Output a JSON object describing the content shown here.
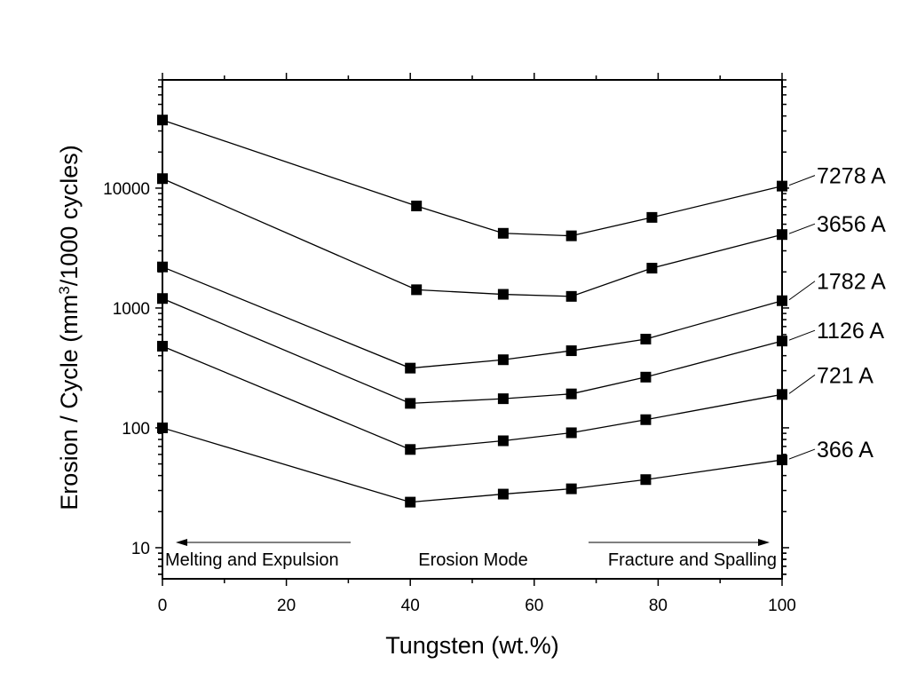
{
  "chart_data": {
    "type": "line",
    "xlabel": "Tungsten (wt.%)",
    "ylabel_parts": [
      "Erosion / Cycle (mm",
      "3",
      "/1000 cycles)"
    ],
    "xlim": [
      0,
      100
    ],
    "ylim": [
      5.5,
      80000
    ],
    "yscale": "log",
    "x_ticks": [
      0,
      20,
      40,
      60,
      80,
      100
    ],
    "x_tick_labels": [
      "0",
      "20",
      "40",
      "60",
      "80",
      "100"
    ],
    "y_ticks": [
      10,
      100,
      1000,
      10000
    ],
    "y_tick_labels": [
      "10",
      "100",
      "1000",
      "10000"
    ],
    "marker": "square",
    "grid": false,
    "series": [
      {
        "name": "7278 A",
        "x": [
          0,
          41,
          55,
          66,
          79,
          100
        ],
        "y": [
          37000,
          7100,
          4200,
          4000,
          5700,
          10400
        ]
      },
      {
        "name": "3656 A",
        "x": [
          0,
          41,
          55,
          66,
          79,
          100
        ],
        "y": [
          12000,
          1420,
          1300,
          1250,
          2150,
          4100
        ]
      },
      {
        "name": "1782 A",
        "x": [
          0,
          40,
          55,
          66,
          78,
          100
        ],
        "y": [
          2200,
          315,
          370,
          440,
          550,
          1150
        ]
      },
      {
        "name": "1126 A",
        "x": [
          0,
          40,
          55,
          66,
          78,
          100
        ],
        "y": [
          1200,
          160,
          175,
          192,
          265,
          530
        ]
      },
      {
        "name": "721 A",
        "x": [
          0,
          40,
          55,
          66,
          78,
          100
        ],
        "y": [
          480,
          66,
          78,
          91,
          117,
          190
        ]
      },
      {
        "name": "366 A",
        "x": [
          0,
          40,
          55,
          66,
          78,
          100
        ],
        "y": [
          100,
          24,
          28,
          31,
          37,
          54
        ]
      }
    ],
    "annotations": {
      "left": "Melting and Expulsion",
      "center": "Erosion Mode",
      "right": "Fracture and Spalling"
    }
  }
}
